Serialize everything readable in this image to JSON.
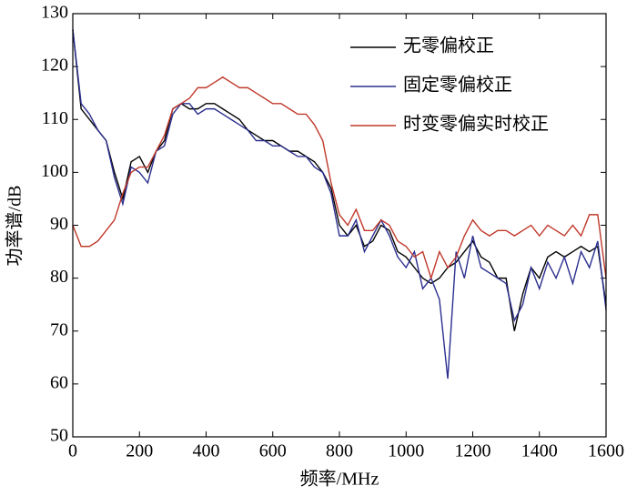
{
  "chart_data": {
    "type": "line",
    "x_label": "频率/MHz",
    "y_label": "功率谱/dB",
    "x": [
      0,
      25,
      50,
      75,
      100,
      125,
      150,
      175,
      200,
      225,
      250,
      275,
      300,
      325,
      350,
      375,
      400,
      425,
      450,
      475,
      500,
      525,
      550,
      575,
      600,
      625,
      650,
      675,
      700,
      725,
      750,
      775,
      800,
      825,
      850,
      875,
      900,
      925,
      950,
      975,
      1000,
      1025,
      1050,
      1075,
      1100,
      1125,
      1150,
      1175,
      1200,
      1225,
      1250,
      1275,
      1300,
      1325,
      1350,
      1375,
      1400,
      1425,
      1450,
      1475,
      1500,
      1525,
      1550,
      1575,
      1600
    ],
    "series": [
      {
        "name": "无零偏校正",
        "color": "#000000",
        "values": [
          127,
          112,
          110,
          108,
          106,
          100,
          95,
          102,
          103,
          100,
          104,
          106,
          112,
          113,
          112,
          112,
          113,
          113,
          112,
          111,
          110,
          108,
          107,
          106,
          106,
          105,
          104,
          104,
          103,
          102,
          100,
          97,
          90,
          88,
          90,
          86,
          87,
          90,
          89,
          85,
          84,
          82,
          80,
          79,
          80,
          82,
          83,
          85,
          87,
          84,
          83,
          80,
          80,
          70,
          77,
          82,
          80,
          84,
          85,
          84,
          85,
          86,
          85,
          86,
          75
        ]
      },
      {
        "name": "固定零偏校正",
        "color": "#2b2f8f",
        "values": [
          127,
          113,
          111,
          108,
          106,
          99,
          94,
          101,
          100,
          98,
          104,
          105,
          111,
          113,
          113,
          111,
          112,
          112,
          111,
          110,
          109,
          108,
          106,
          106,
          105,
          105,
          104,
          103,
          103,
          101,
          100,
          96,
          88,
          88,
          91,
          85,
          88,
          91,
          88,
          84,
          82,
          85,
          78,
          80,
          76,
          61,
          85,
          80,
          88,
          82,
          81,
          80,
          79,
          72,
          75,
          82,
          78,
          83,
          80,
          84,
          79,
          85,
          82,
          87,
          74
        ]
      },
      {
        "name": "时变零偏实时校正",
        "color": "#c0392b",
        "values": [
          90,
          86,
          86,
          87,
          89,
          91,
          96,
          100,
          101,
          101,
          104,
          107,
          112,
          113,
          114,
          116,
          116,
          117,
          118,
          117,
          116,
          116,
          115,
          114,
          113,
          113,
          112,
          111,
          111,
          109,
          106,
          98,
          92,
          90,
          93,
          89,
          89,
          91,
          90,
          87,
          86,
          84,
          85,
          80,
          85,
          82,
          84,
          88,
          91,
          89,
          88,
          89,
          89,
          88,
          89,
          90,
          88,
          90,
          89,
          88,
          90,
          88,
          92,
          92,
          80
        ]
      }
    ],
    "xlim": [
      0,
      1600
    ],
    "xticks": [
      0,
      200,
      400,
      600,
      800,
      1000,
      1200,
      1400,
      1600
    ],
    "ylim": [
      50,
      130
    ],
    "yticks": [
      50,
      60,
      70,
      80,
      90,
      100,
      110,
      120,
      130
    ],
    "legend": "upper right"
  }
}
